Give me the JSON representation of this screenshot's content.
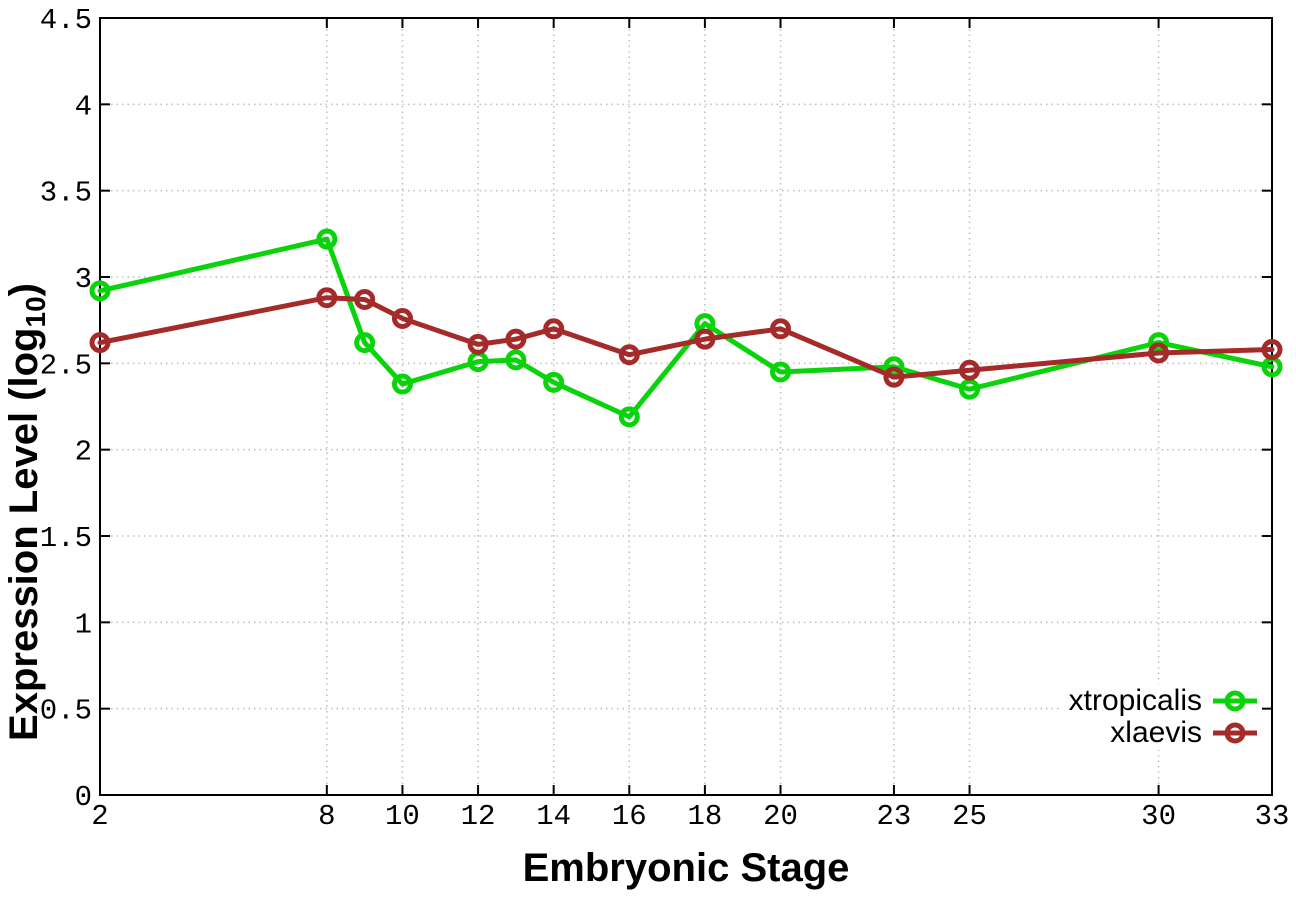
{
  "chart_data": {
    "type": "line",
    "title": "",
    "xlabel": "Embryonic Stage",
    "ylabel": {
      "pre": "Expression Level (log",
      "sub": "10",
      "post": ")"
    },
    "xlim": [
      2,
      33
    ],
    "ylim": [
      0,
      4.5
    ],
    "x_ticks": [
      2,
      8,
      10,
      12,
      14,
      16,
      18,
      20,
      23,
      25,
      30,
      33
    ],
    "x_tick_labels": [
      "2",
      "8",
      "10",
      "12",
      "14",
      "16",
      "18",
      "20",
      "23",
      "25",
      "30",
      "33"
    ],
    "y_ticks": [
      0,
      0.5,
      1,
      1.5,
      2,
      2.5,
      3,
      3.5,
      4,
      4.5
    ],
    "y_tick_labels": [
      "0",
      "0.5",
      "1",
      "1.5",
      "2",
      "2.5",
      "3",
      "3.5",
      "4",
      "4.5"
    ],
    "grid": true,
    "legend_position": "bottom-right-inside",
    "x": [
      2,
      8,
      9,
      10,
      12,
      13,
      14,
      16,
      18,
      20,
      23,
      25,
      30,
      33
    ],
    "series": [
      {
        "name": "xtropicalis",
        "color": "#0bd30b",
        "marker": "open-circle",
        "values": [
          2.92,
          3.22,
          2.62,
          2.38,
          2.51,
          2.52,
          2.39,
          2.19,
          2.73,
          2.45,
          2.48,
          2.35,
          2.62,
          2.48
        ]
      },
      {
        "name": "xlaevis",
        "color": "#a52a2a",
        "marker": "open-circle",
        "values": [
          2.62,
          2.88,
          2.87,
          2.76,
          2.61,
          2.64,
          2.7,
          2.55,
          2.64,
          2.7,
          2.42,
          2.46,
          2.56,
          2.58
        ]
      }
    ],
    "colors": {
      "grid": "#bdbdbd",
      "axis": "#000000",
      "background": "#ffffff"
    }
  }
}
